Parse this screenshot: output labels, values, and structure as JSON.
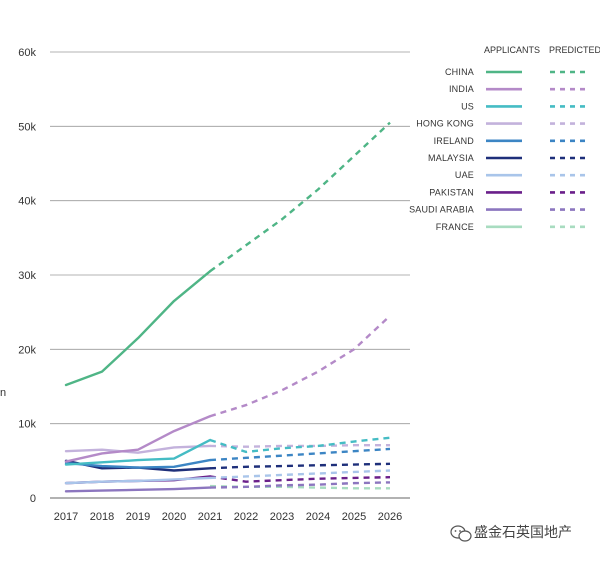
{
  "chart_data": {
    "type": "line",
    "title": "",
    "xlabel": "",
    "ylabel": "",
    "x": [
      2017,
      2018,
      2019,
      2020,
      2021,
      2022,
      2023,
      2024,
      2025,
      2026
    ],
    "actual_years": [
      2017,
      2018,
      2019,
      2020,
      2021
    ],
    "predicted_years": [
      2021,
      2022,
      2023,
      2024,
      2025,
      2026
    ],
    "ylim": [
      0,
      60000
    ],
    "yticks": [
      0,
      10000,
      20000,
      30000,
      40000,
      50000,
      60000
    ],
    "ytick_labels": [
      "0",
      "10k",
      "20k",
      "30k",
      "40k",
      "50k",
      "60k"
    ],
    "grid": true,
    "legend": {
      "placement": "right",
      "applicants_header": "APPLICANTS",
      "predicted_header": "PREDICTED"
    },
    "series": [
      {
        "name": "CHINA",
        "color": "#4fb586",
        "actual": [
          15200,
          17000,
          21500,
          26500,
          30500
        ],
        "predicted": [
          30500,
          34000,
          37500,
          41500,
          46000,
          50500
        ]
      },
      {
        "name": "INDIA",
        "color": "#b48ac8",
        "actual": [
          4900,
          6000,
          6500,
          9000,
          11000
        ],
        "predicted": [
          11000,
          12500,
          14500,
          17000,
          20000,
          24500
        ]
      },
      {
        "name": "US",
        "color": "#45bcc4",
        "actual": [
          4500,
          4800,
          5100,
          5300,
          7800
        ],
        "predicted": [
          7800,
          6200,
          6700,
          7000,
          7600,
          8100
        ]
      },
      {
        "name": "HONG KONG",
        "color": "#c3b2dc",
        "actual": [
          6300,
          6500,
          6100,
          6800,
          7000
        ],
        "predicted": [
          7000,
          6900,
          7000,
          7000,
          7100,
          7100
        ]
      },
      {
        "name": "IRELAND",
        "color": "#3c85c4",
        "actual": [
          4700,
          4300,
          4100,
          4200,
          5100
        ],
        "predicted": [
          5100,
          5400,
          5700,
          6000,
          6300,
          6600
        ]
      },
      {
        "name": "MALAYSIA",
        "color": "#1e2f7a",
        "actual": [
          5000,
          4000,
          4100,
          3700,
          4000
        ],
        "predicted": [
          4000,
          4200,
          4300,
          4400,
          4500,
          4600
        ]
      },
      {
        "name": "UAE",
        "color": "#a9c5ea",
        "actual": [
          2000,
          2200,
          2300,
          2500,
          2700
        ],
        "predicted": [
          2700,
          2900,
          3100,
          3300,
          3500,
          3700
        ]
      },
      {
        "name": "PAKISTAN",
        "color": "#6a1f8a",
        "actual": [
          2000,
          2200,
          2300,
          2400,
          2900
        ],
        "predicted": [
          2900,
          2200,
          2400,
          2600,
          2700,
          2800
        ]
      },
      {
        "name": "SAUDI ARABIA",
        "color": "#8c76bf",
        "actual": [
          900,
          1000,
          1100,
          1200,
          1400
        ],
        "predicted": [
          1400,
          1500,
          1700,
          1800,
          2000,
          2100
        ]
      },
      {
        "name": "FRANCE",
        "color": "#a8dcc0",
        "actual": [
          null,
          null,
          null,
          null,
          1600
        ],
        "predicted": [
          1600,
          1500,
          1500,
          1400,
          1300,
          1300
        ]
      }
    ]
  },
  "watermark": {
    "text": "盛金石英国地产",
    "icon": "wechat-icon"
  },
  "edge_fragment": "n"
}
